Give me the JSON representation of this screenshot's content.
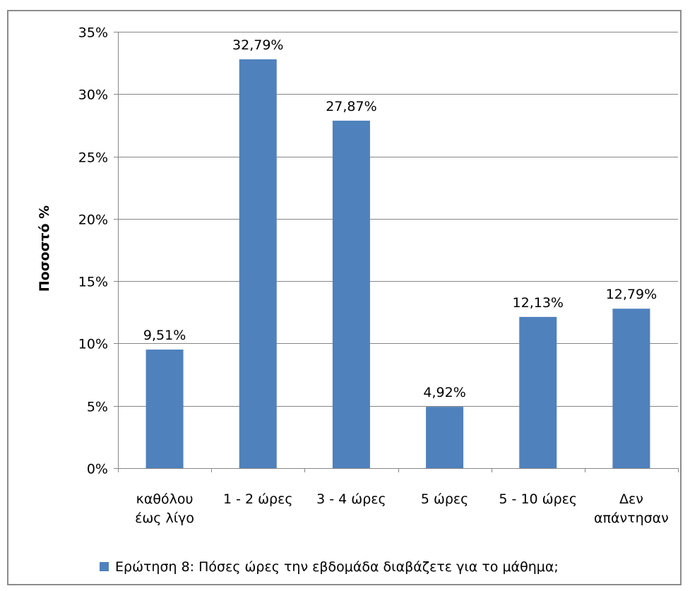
{
  "chart_data": {
    "type": "bar",
    "categories": [
      [
        "καθόλου",
        "έως λίγο"
      ],
      [
        "1 - 2 ώρες"
      ],
      [
        "3 - 4 ώρες"
      ],
      [
        "5 ώρες"
      ],
      [
        "5 - 10 ώρες"
      ],
      [
        "Δεν",
        "απάντησαν"
      ]
    ],
    "series": [
      {
        "name": "Ερώτηση 8: Πόσες ώρες την εβδομάδα διαβάζετε για το μάθημα;",
        "values": [
          9.51,
          32.79,
          27.87,
          4.92,
          12.13,
          12.79
        ],
        "labels": [
          "9,51%",
          "32,79%",
          "27,87%",
          "4,92%",
          "12,13%",
          "12,79%"
        ]
      }
    ],
    "ylabel": "Ποσοστό %",
    "xlabel": "",
    "ylim": [
      0,
      35
    ],
    "yticks": [
      0,
      5,
      10,
      15,
      20,
      25,
      30,
      35
    ],
    "ytick_labels": [
      "0%",
      "5%",
      "10%",
      "15%",
      "20%",
      "25%",
      "30%",
      "35%"
    ],
    "grid": true,
    "legend": "bottom",
    "colors": {
      "bar": "#4f81bd",
      "grid": "#868686",
      "axis": "#868686",
      "frame": "#8c8c8c"
    }
  }
}
